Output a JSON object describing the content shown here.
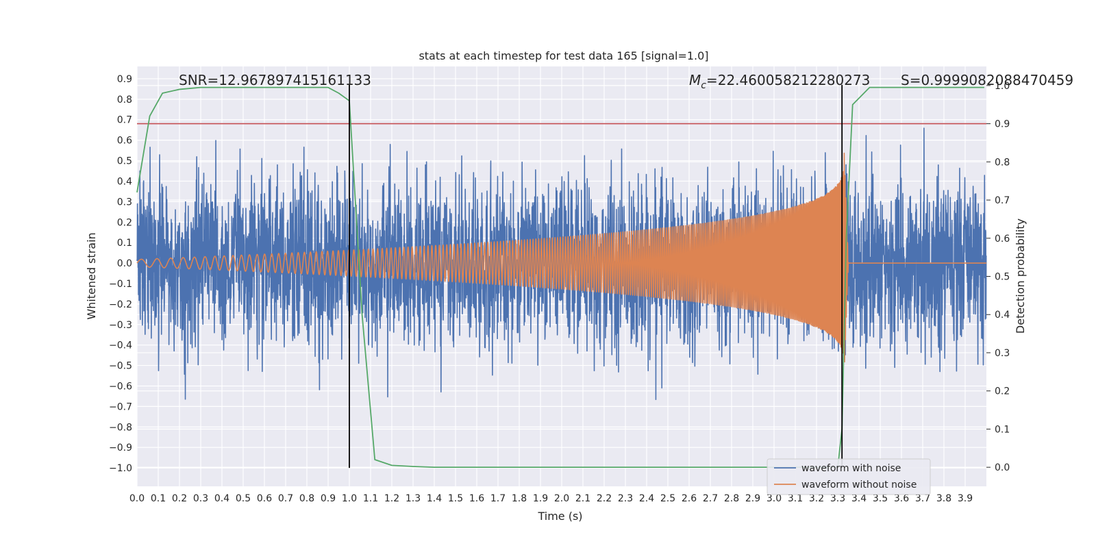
{
  "chart_data": {
    "type": "line",
    "title": "stats at each timestep for test data 165 [signal=1.0]",
    "xlabel": "Time (s)",
    "ylabel": "Whitened strain",
    "y2label": "Detection probability",
    "xlim": [
      0.0,
      4.0
    ],
    "ylim": [
      -1.09,
      0.96
    ],
    "y2lim": [
      -0.05,
      1.05
    ],
    "x_ticks": [
      0.0,
      0.1,
      0.2,
      0.3,
      0.4,
      0.5,
      0.6,
      0.7,
      0.8,
      0.9,
      1.0,
      1.1,
      1.2,
      1.3,
      1.4,
      1.5,
      1.6,
      1.7,
      1.8,
      1.9,
      2.0,
      2.1,
      2.2,
      2.3,
      2.4,
      2.5,
      2.6,
      2.7,
      2.8,
      2.9,
      3.0,
      3.1,
      3.2,
      3.3,
      3.4,
      3.5,
      3.6,
      3.7,
      3.8,
      3.9
    ],
    "y_ticks": [
      0.9,
      0.8,
      0.7,
      0.6,
      0.5,
      0.4,
      0.3,
      0.2,
      0.1,
      0.0,
      -0.1,
      -0.2,
      -0.3,
      -0.4,
      -0.5,
      -0.6,
      -0.7,
      -0.8,
      -0.9,
      -1.0
    ],
    "y_tick_labels": [
      "0.9",
      "0.8",
      "0.7",
      "0.6",
      "0.5",
      "0.4",
      "0.3",
      "0.2",
      "0.1",
      "0.0",
      "−0.1",
      "−0.2",
      "−0.3",
      "−0.4",
      "−0.5",
      "−0.6",
      "−0.7",
      "−0.8",
      "−0.9",
      "−1.0"
    ],
    "y2_ticks": [
      1.0,
      0.9,
      0.8,
      0.7,
      0.6,
      0.5,
      0.4,
      0.3,
      0.2,
      0.1,
      0.0
    ],
    "grid": true,
    "legend_position": "lower-right",
    "annotations": {
      "snr": "SNR=12.967897415161133",
      "mc_symbol": "M",
      "mc_sub": "c",
      "mc_value": "=22.460058212280273",
      "s": "S=0.9999082088470459"
    },
    "vlines_x": [
      1.0,
      3.32
    ],
    "vline_range": [
      -1.0,
      0.87
    ],
    "threshold_prob": 0.9,
    "series": [
      {
        "name": "waveform with noise",
        "color": "#4c72b0",
        "noise_sigma": 0.2,
        "max_abs": 0.87,
        "samples": 4096
      },
      {
        "name": "waveform without noise",
        "color": "#dd8452",
        "merger_time": 3.33,
        "start_amplitude": 0.018,
        "start_frequency": 12,
        "end_amplitude": 0.55,
        "end_frequency": 250
      },
      {
        "color": "#55a868",
        "axis": "right",
        "x": [
          0.0,
          0.06,
          0.12,
          0.2,
          0.3,
          0.5,
          0.7,
          0.9,
          0.95,
          1.0,
          1.06,
          1.12,
          1.2,
          1.3,
          1.4,
          1.6,
          2.0,
          2.5,
          3.0,
          3.28,
          3.3,
          3.32,
          3.34,
          3.37,
          3.45,
          3.6,
          3.8,
          3.99
        ],
        "values": [
          0.72,
          0.92,
          0.98,
          0.99,
          0.995,
          0.995,
          0.995,
          0.995,
          0.98,
          0.96,
          0.4,
          0.02,
          0.005,
          0.002,
          0.0,
          0.0,
          0.0,
          0.0,
          0.0,
          0.0,
          0.0,
          0.1,
          0.6,
          0.95,
          0.995,
          0.995,
          0.995,
          0.995
        ]
      },
      {
        "color": "#c44e52",
        "axis": "right",
        "x": [
          0.0,
          4.0
        ],
        "values": [
          0.9,
          0.9
        ]
      }
    ]
  }
}
